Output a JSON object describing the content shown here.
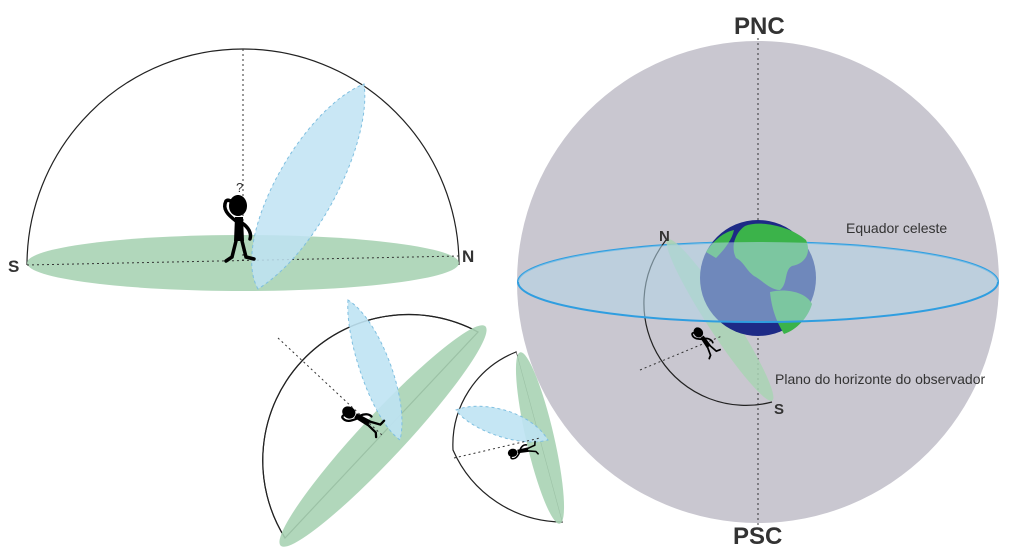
{
  "colors": {
    "sphere_gray": "#c9c7d0",
    "horizon_green": "#a9d3b4",
    "meridian_blue": "#bfe3f3",
    "equator_fill": "#b3d6e8",
    "equator_stroke": "#2f9ee0",
    "ocean": "#1d2a86",
    "land": "#3bb34a",
    "text": "#333333"
  },
  "labels": {
    "pnc": "PNC",
    "psc": "PSC",
    "equator": "Equador celeste",
    "horizon_plane": "Plano do horizonte do observador",
    "dome_south": "S",
    "dome_north": "N",
    "sphere_north": "N",
    "sphere_south": "S",
    "question_mark": "?"
  }
}
